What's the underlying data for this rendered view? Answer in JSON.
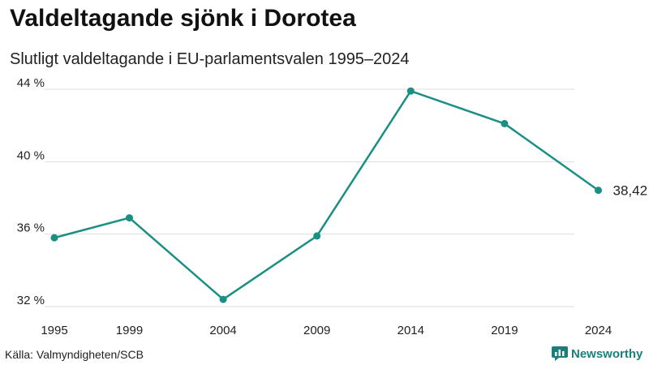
{
  "header": {
    "title": "Valdeltagande sjönk i Dorotea",
    "subtitle": "Slutligt valdeltagande i EU-parlamentsvalen 1995–2024"
  },
  "footer": {
    "source": "Källa: Valmyndigheten/SCB",
    "brand": "Newsworthy"
  },
  "colors": {
    "line": "#1a8f84",
    "grid": "#dddddd",
    "brand": "#1a7f7a"
  },
  "chart_data": {
    "type": "line",
    "title": "Valdeltagande sjönk i Dorotea",
    "subtitle": "Slutligt valdeltagande i EU-parlamentsvalen 1995–2024",
    "xlabel": "",
    "ylabel": "",
    "x": [
      1995,
      1999,
      2004,
      2009,
      2014,
      2019,
      2024
    ],
    "x_tick_labels": [
      "1995",
      "1999",
      "2004",
      "2009",
      "2014",
      "2019",
      "2024"
    ],
    "series": [
      {
        "name": "Dorotea",
        "values": [
          35.8,
          36.9,
          32.4,
          35.9,
          43.9,
          42.1,
          38.42
        ]
      }
    ],
    "ylim": [
      32,
      44
    ],
    "xlim": [
      1995,
      2028
    ],
    "y_ticks": [
      32,
      36,
      40,
      44
    ],
    "y_tick_labels": [
      "32 %",
      "36 %",
      "40 %",
      "44 %"
    ],
    "end_label": "38,42 %",
    "grid": true
  }
}
